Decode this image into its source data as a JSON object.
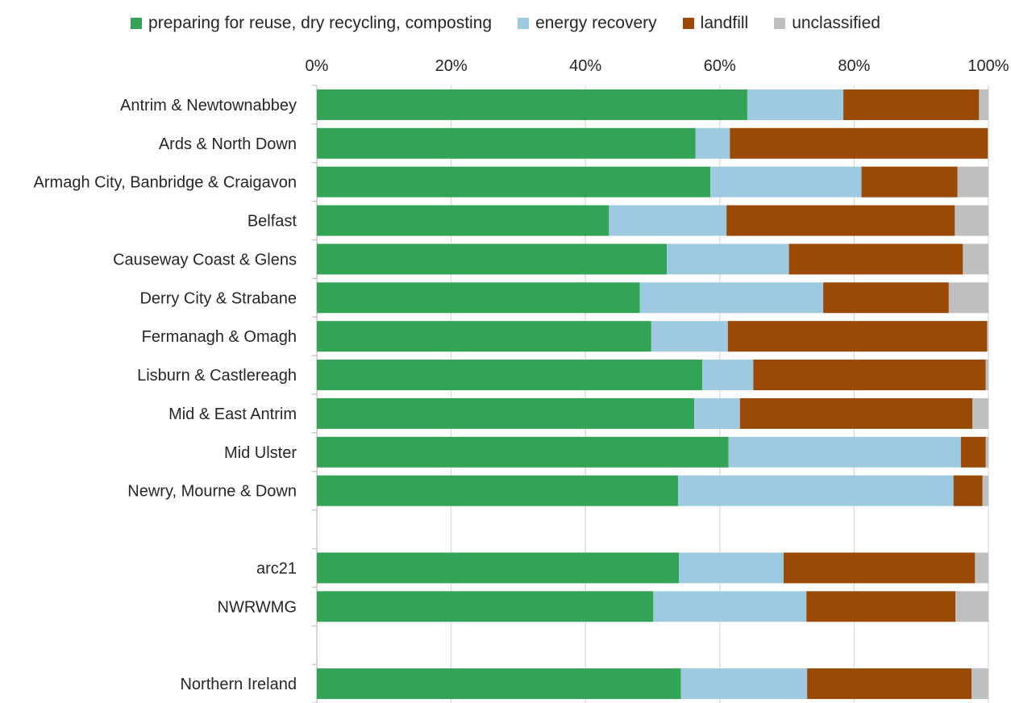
{
  "chart_data": {
    "type": "bar",
    "orientation": "horizontal",
    "stacked": true,
    "xlim": [
      0,
      100
    ],
    "x_ticks": [
      "0%",
      "20%",
      "40%",
      "60%",
      "80%",
      "100%"
    ],
    "x_tick_values": [
      0,
      20,
      40,
      60,
      80,
      100
    ],
    "grid": true,
    "legend_position": "top",
    "categories": [
      "Antrim & Newtownabbey",
      "Ards & North Down",
      "Armagh City, Banbridge & Craigavon",
      "Belfast",
      "Causeway Coast & Glens",
      "Derry City & Strabane",
      "Fermanagh & Omagh",
      "Lisburn & Castlereagh",
      "Mid & East Antrim",
      "Mid Ulster",
      "Newry, Mourne & Down",
      "",
      "arc21",
      "NWRWMG",
      "",
      "Northern Ireland"
    ],
    "series": [
      {
        "name": "preparing for reuse, dry recycling, composting",
        "color": "#33a456",
        "values": [
          64.1,
          56.4,
          58.6,
          43.5,
          52.1,
          48.1,
          49.8,
          57.4,
          56.2,
          61.3,
          53.8,
          null,
          53.9,
          50.1,
          null,
          54.2
        ]
      },
      {
        "name": "energy recovery",
        "color": "#9ecae1",
        "values": [
          14.3,
          5.1,
          22.5,
          17.5,
          18.2,
          27.3,
          11.4,
          7.6,
          6.8,
          34.6,
          41.0,
          null,
          15.6,
          22.8,
          null,
          18.8
        ]
      },
      {
        "name": "landfill",
        "color": "#9b4a06",
        "values": [
          20.2,
          38.4,
          14.3,
          34.0,
          25.9,
          18.7,
          38.6,
          34.6,
          34.6,
          3.7,
          4.3,
          null,
          28.5,
          22.2,
          null,
          24.5
        ]
      },
      {
        "name": "unclassified",
        "color": "#bfbfbf",
        "values": [
          1.4,
          0.1,
          4.6,
          5.0,
          3.8,
          5.9,
          0.2,
          0.4,
          2.4,
          0.4,
          0.9,
          null,
          2.0,
          4.9,
          null,
          2.5
        ]
      }
    ]
  },
  "colors": {
    "grid": "#d9d9d9",
    "axis": "#bfbfbf"
  }
}
